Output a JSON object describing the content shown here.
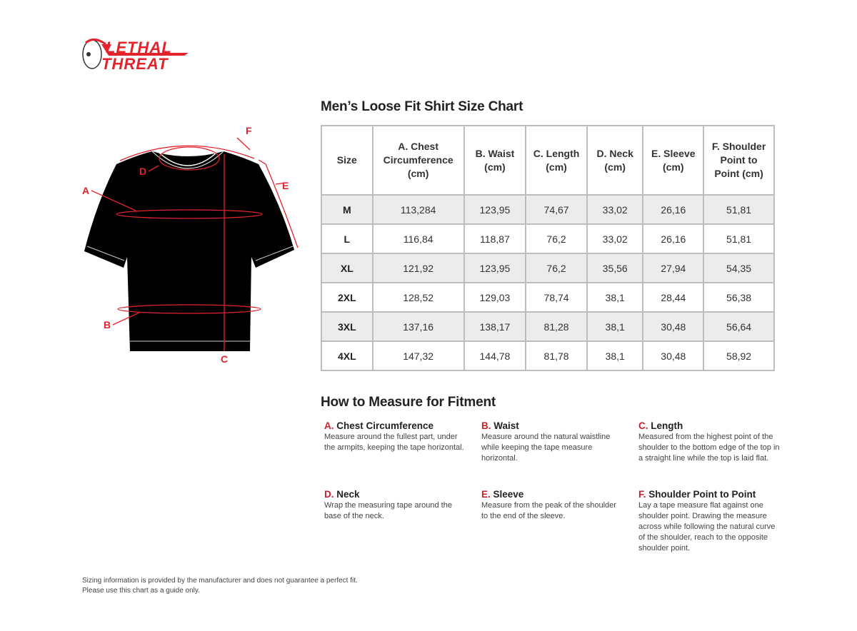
{
  "brand": {
    "logo_text": "Lethal Threat",
    "color": "#e3232b"
  },
  "diagram": {
    "labels": [
      "A",
      "B",
      "C",
      "D",
      "E",
      "F"
    ],
    "accent": "#e3232b"
  },
  "chart_title": "Men’s Loose Fit Shirt Size Chart",
  "table": {
    "headers": [
      "Size",
      "A. Chest Circumference (cm)",
      "B. Waist (cm)",
      "C. Length (cm)",
      "D. Neck (cm)",
      "E. Sleeve (cm)",
      "F. Shoulder Point to Point (cm)"
    ],
    "rows": [
      [
        "M",
        "113,284",
        "123,95",
        "74,67",
        "33,02",
        "26,16",
        "51,81"
      ],
      [
        "L",
        "116,84",
        "118,87",
        "76,2",
        "33,02",
        "26,16",
        "51,81"
      ],
      [
        "XL",
        "121,92",
        "123,95",
        "76,2",
        "35,56",
        "27,94",
        "54,35"
      ],
      [
        "2XL",
        "128,52",
        "129,03",
        "78,74",
        "38,1",
        "28,44",
        "56,38"
      ],
      [
        "3XL",
        "137,16",
        "138,17",
        "81,28",
        "38,1",
        "30,48",
        "56,64"
      ],
      [
        "4XL",
        "147,32",
        "144,78",
        "81,78",
        "38,1",
        "30,48",
        "58,92"
      ]
    ]
  },
  "how_to": {
    "title": "How to Measure for Fitment",
    "items": [
      {
        "letter": "A.",
        "name": "Chest Circumference",
        "text": "Measure around the fullest part, under the armpits, keeping the tape horizontal."
      },
      {
        "letter": "B.",
        "name": "Waist",
        "text": "Measure around the natural waistline while keeping the tape measure horizontal."
      },
      {
        "letter": "C.",
        "name": "Length",
        "text": "Measured from the highest point of the shoulder to the bottom edge of the top in a straight line while the top is laid flat."
      },
      {
        "letter": "D.",
        "name": "Neck",
        "text": "Wrap the measuring tape around the base of the neck."
      },
      {
        "letter": "E.",
        "name": "Sleeve",
        "text": "Measure from the peak of the shoulder to the end of the sleeve."
      },
      {
        "letter": "F.",
        "name": "Shoulder Point to Point",
        "text": "Lay a tape measure flat against one shoulder point. Drawing the measure across while following the natural curve of the shoulder, reach to the opposite shoulder point."
      }
    ]
  },
  "footer": {
    "line1": "Sizing information is provided by the manufacturer and does not guarantee a perfect fit.",
    "line2": "Please use this chart as a guide only."
  }
}
